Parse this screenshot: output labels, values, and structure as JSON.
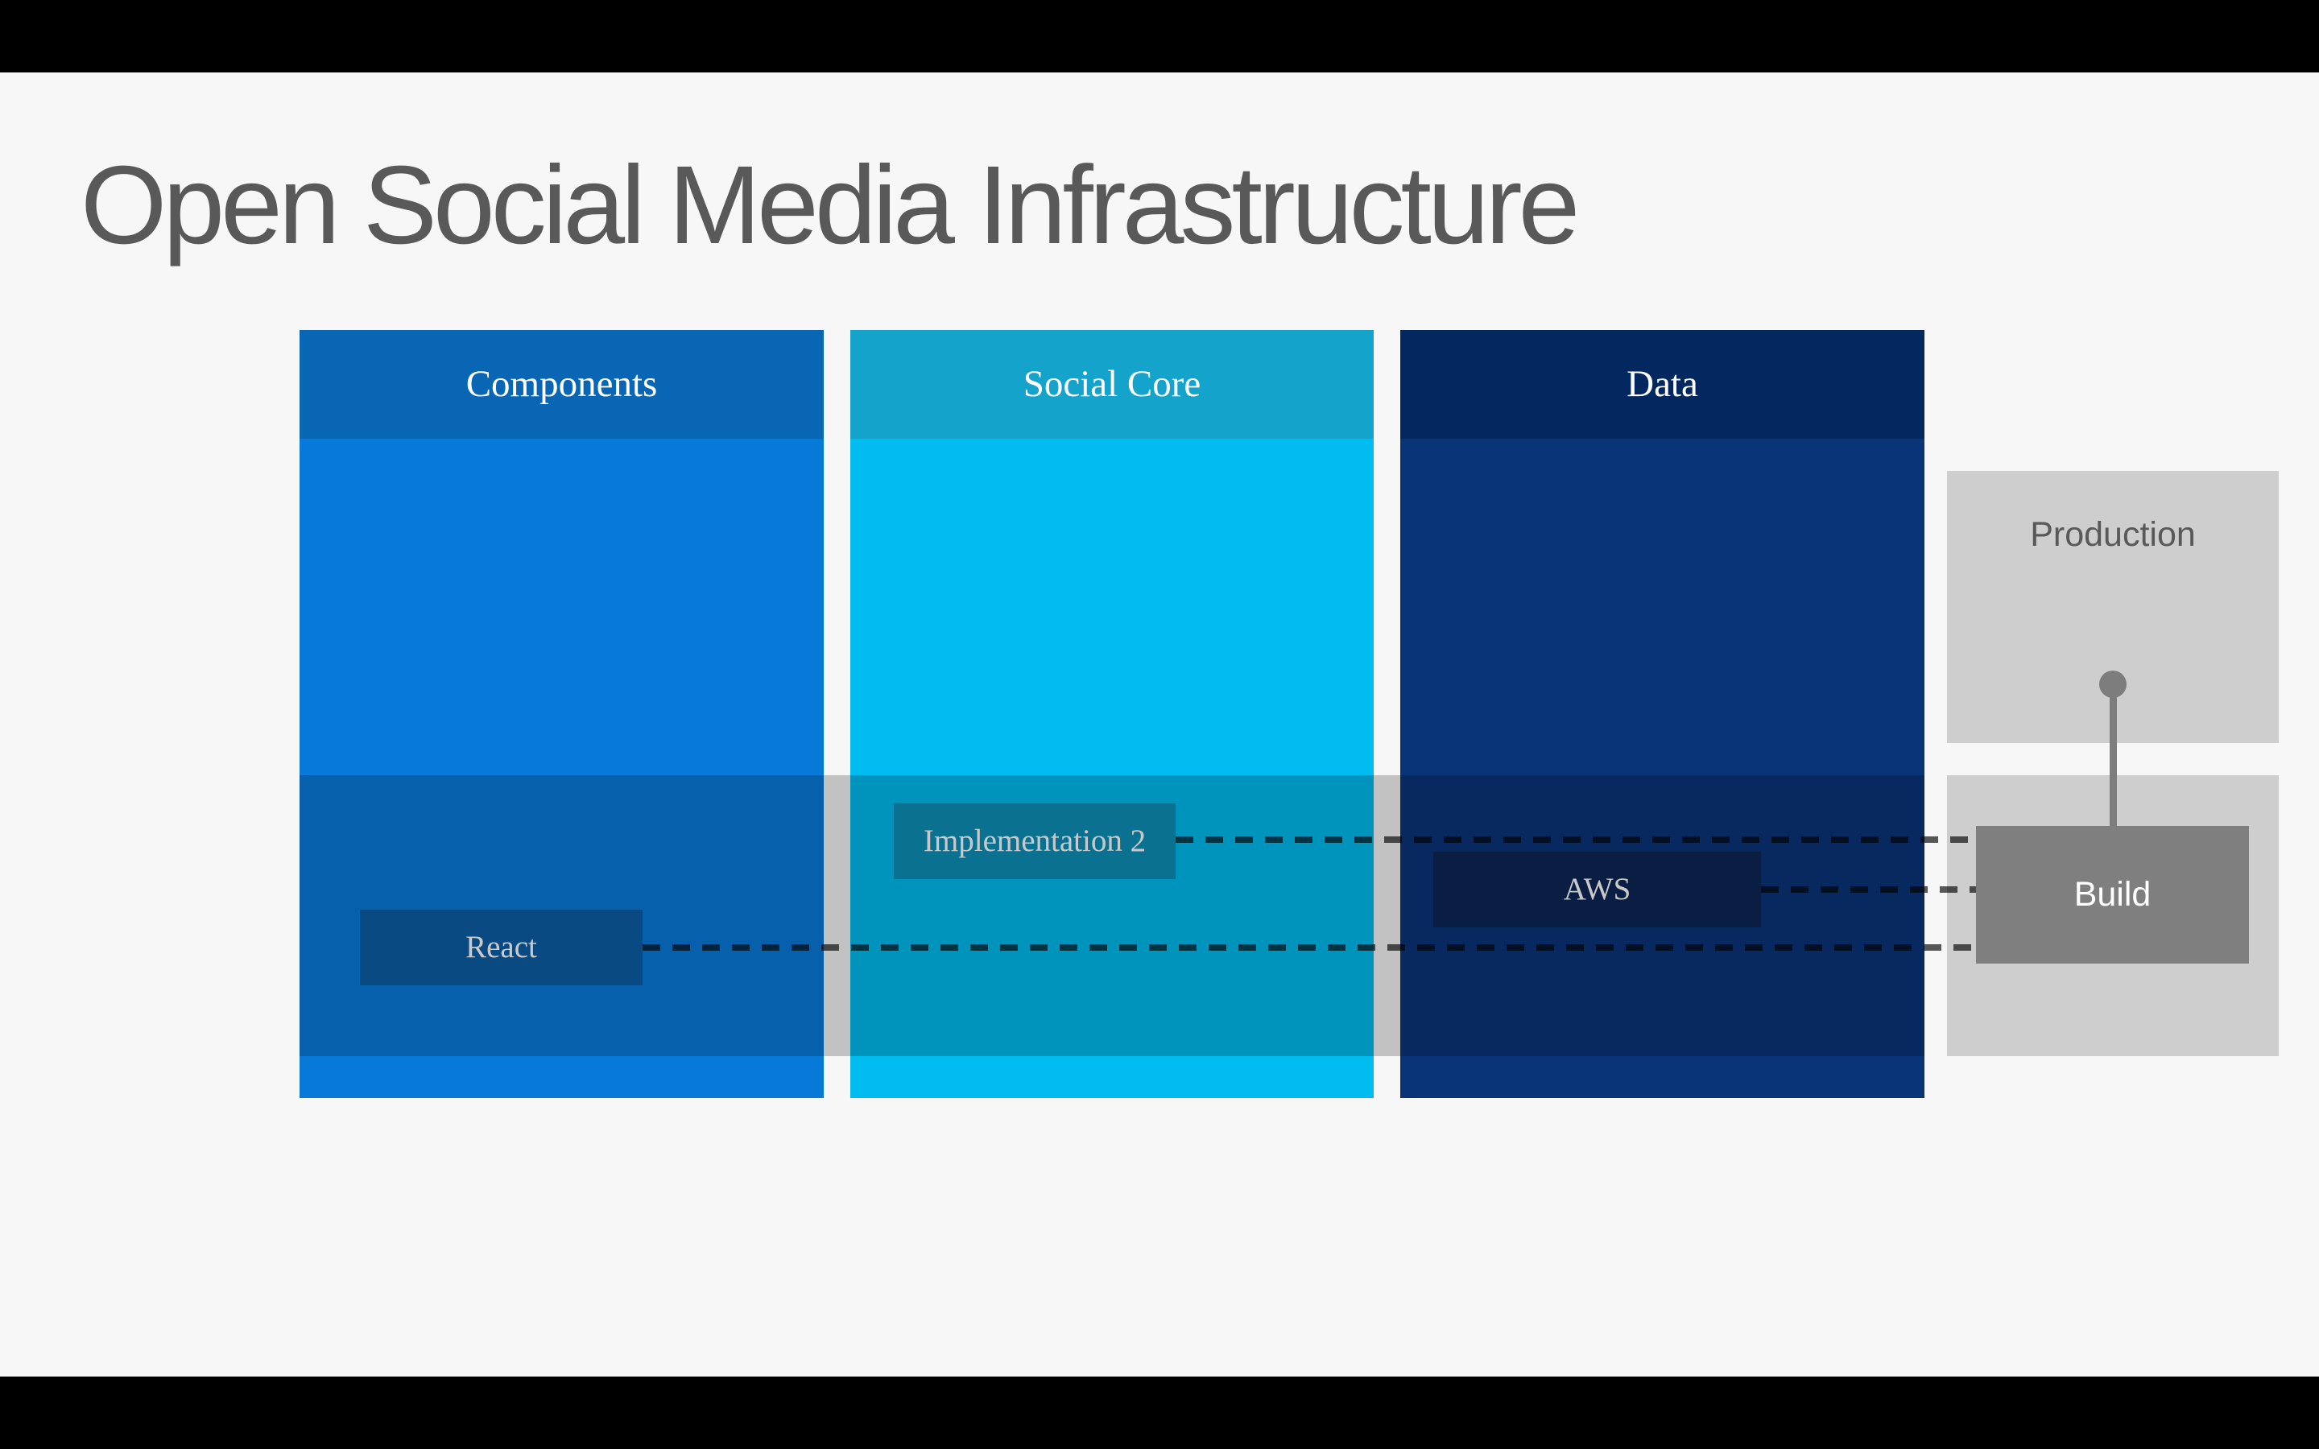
{
  "slide": {
    "title": "Open Social Media Infrastructure",
    "colors": {
      "background": "#f7f7f7",
      "letterbox": "#000000",
      "title_text": "#595959",
      "band_overlay": "#c9c9c9",
      "dashed_connector": "#595959",
      "panel_gray": "#cecece",
      "build_box_gray": "#7f7f7f",
      "stem_connector_gray": "#7d7d7d"
    },
    "columns": [
      {
        "label": "Components",
        "header_color": "#0866b5",
        "body_color": "#077ad9",
        "item": {
          "label": "React",
          "color": "#0c5da5"
        }
      },
      {
        "label": "Social Core",
        "header_color": "#14a3cb",
        "body_color": "#00bcf0",
        "item": {
          "label": "Implementation 2",
          "color": "#0e8fb7"
        }
      },
      {
        "label": "Data",
        "header_color": "#03285f",
        "body_color": "#0a3478",
        "item": {
          "label": "AWS",
          "color": "#0b2554"
        }
      }
    ],
    "right_panel": {
      "production_label": "Production",
      "build_label": "Build"
    }
  }
}
